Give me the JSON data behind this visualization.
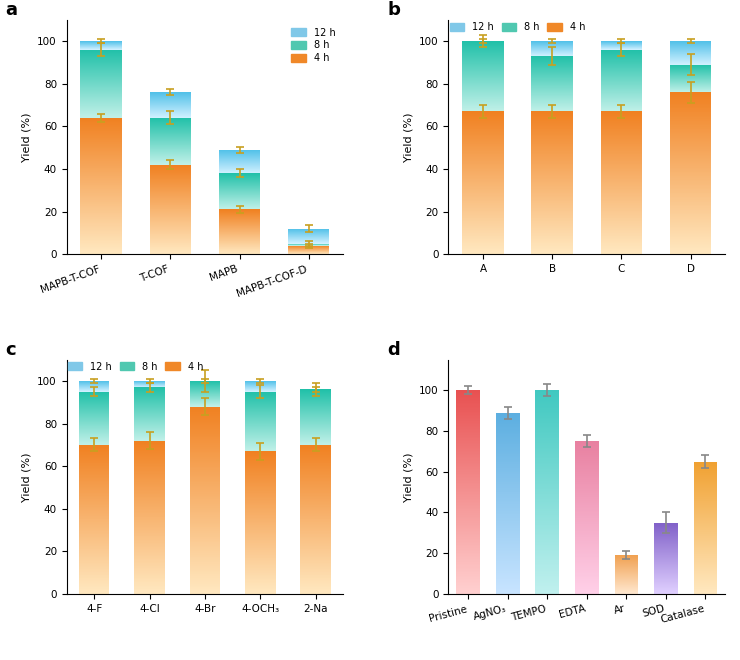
{
  "panel_a": {
    "categories": [
      "MAPB-T-COF",
      "T-COF",
      "MAPB",
      "MAPB-T-COF-D"
    ],
    "val_4h": [
      64,
      42,
      21,
      4
    ],
    "val_8h": [
      96,
      64,
      38,
      5
    ],
    "val_12h": [
      100,
      76,
      49,
      12
    ],
    "err_4h": [
      2,
      2,
      1.5,
      1
    ],
    "err_8h": [
      3,
      3,
      2,
      1
    ],
    "err_12h": [
      1,
      1.5,
      1.5,
      1.5
    ]
  },
  "panel_b": {
    "categories": [
      "A",
      "B",
      "C",
      "D"
    ],
    "val_4h": [
      67,
      67,
      67,
      76
    ],
    "val_8h": [
      100,
      93,
      96,
      89
    ],
    "val_12h": [
      100,
      100,
      100,
      100
    ],
    "err_4h": [
      3,
      3,
      3,
      5
    ],
    "err_8h": [
      3,
      4,
      3,
      5
    ],
    "err_12h": [
      1,
      1,
      1,
      1
    ]
  },
  "panel_c": {
    "categories": [
      "4-F",
      "4-Cl",
      "4-Br",
      "4-OCH₃",
      "2-Na"
    ],
    "val_4h": [
      70,
      72,
      88,
      67,
      70
    ],
    "val_8h": [
      95,
      97,
      100,
      95,
      96
    ],
    "val_12h": [
      100,
      100,
      100,
      100,
      96
    ],
    "err_4h": [
      3,
      4,
      4,
      4,
      3
    ],
    "err_8h": [
      2,
      2,
      5,
      3,
      3
    ],
    "err_12h": [
      1,
      1,
      1,
      1,
      1
    ]
  },
  "panel_d": {
    "categories": [
      "Pristine",
      "AgNO₃",
      "TEMPO",
      "EDTA",
      "Ar",
      "SOD",
      "Catalase"
    ],
    "values": [
      100,
      89,
      100,
      75,
      19,
      35,
      65
    ],
    "errors": [
      2,
      3,
      3,
      3,
      2,
      5,
      3
    ],
    "color_sat": [
      "#E85050",
      "#5BAEE0",
      "#40C8C0",
      "#E880A0",
      "#F0A050",
      "#8060C8",
      "#F0A030"
    ],
    "color_light": [
      "#FFD0D0",
      "#C8E4FF",
      "#C0F0EE",
      "#FFD0E8",
      "#FFE8D0",
      "#E0D0FF",
      "#FFE8C0"
    ]
  },
  "ylabel": "Yield (%)",
  "bar_4h_sat": "#F08020",
  "bar_4h_light": "#FFE8C0",
  "bar_8h_sat": "#20C0A8",
  "bar_8h_light": "#C0F0E8",
  "bar_12h_sat": "#50C0E8",
  "bar_12h_light": "#D0F0FF"
}
